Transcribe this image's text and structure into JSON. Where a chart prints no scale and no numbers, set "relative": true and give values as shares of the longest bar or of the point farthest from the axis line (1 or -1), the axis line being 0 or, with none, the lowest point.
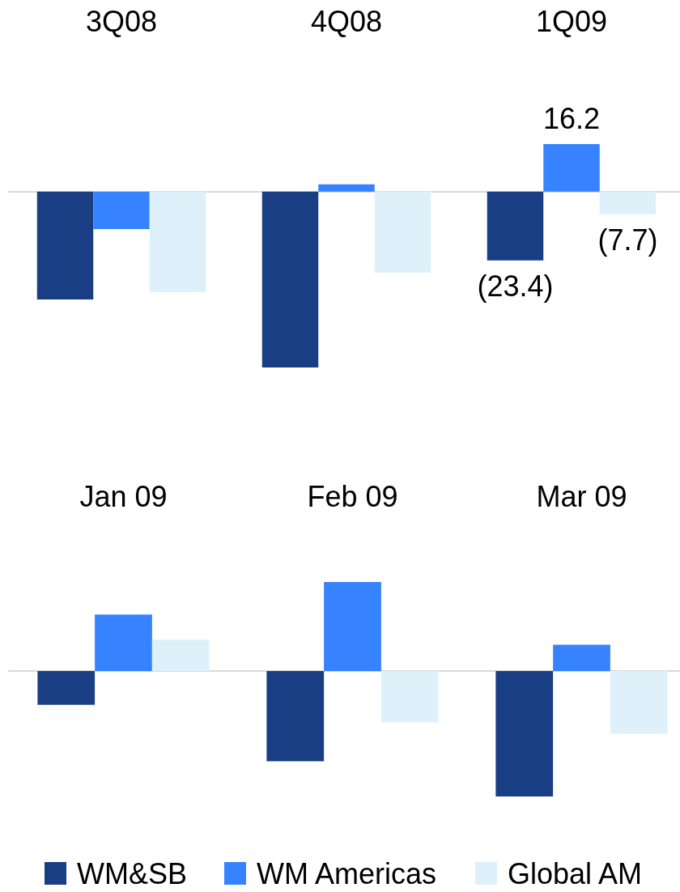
{
  "chart_data": [
    {
      "type": "bar",
      "categories": [
        "3Q08",
        "4Q08",
        "1Q09"
      ],
      "tick_labels": "x",
      "series": [
        {
          "color": "#1a3e84",
          "values": [
            -36.7,
            -59.8,
            -23.4
          ],
          "value_labels": [
            null,
            null,
            "(23.4)"
          ]
        },
        {
          "color": "#3783ff",
          "values": [
            -12.7,
            2.5,
            16.2
          ],
          "value_labels": [
            null,
            null,
            "16.2"
          ]
        },
        {
          "color": "#def1fa",
          "values": [
            -34.2,
            -27.5,
            -7.7
          ],
          "value_labels": [
            null,
            null,
            "(7.7)"
          ]
        }
      ]
    },
    {
      "type": "bar",
      "categories": [
        "Jan 09",
        "Feb 09",
        "Mar 09"
      ],
      "relative": true,
      "legend": "bottom",
      "series": [
        {
          "name": "WM&SB",
          "color": "#1a3e84",
          "values": [
            -0.27,
            -0.72,
            -1
          ]
        },
        {
          "name": "WM Americas",
          "color": "#3783ff",
          "values": [
            0.45,
            0.71,
            0.21
          ]
        },
        {
          "name": "Global AM",
          "color": "#def1fa",
          "values": [
            0.25,
            -0.41,
            -0.5
          ]
        }
      ]
    }
  ]
}
